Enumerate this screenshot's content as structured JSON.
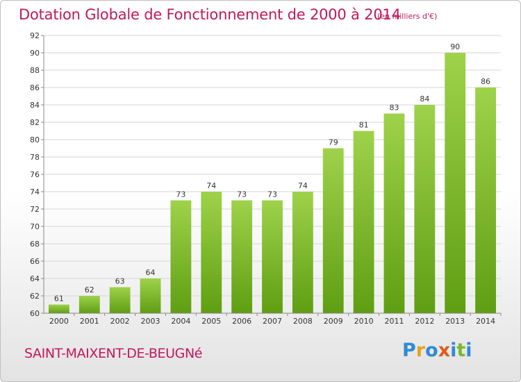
{
  "chart_data": {
    "type": "bar",
    "title": "Dotation Globale de Fonctionnement de 2000 à 2014",
    "subtitle": "(en milliers d'€)",
    "categories": [
      "2000",
      "2001",
      "2002",
      "2003",
      "2004",
      "2005",
      "2006",
      "2007",
      "2008",
      "2009",
      "2010",
      "2011",
      "2012",
      "2013",
      "2014"
    ],
    "values": [
      61,
      62,
      63,
      64,
      73,
      74,
      73,
      73,
      74,
      79,
      81,
      83,
      84,
      90,
      86
    ],
    "ylim": [
      60,
      92
    ],
    "yticks": [
      60,
      62,
      64,
      66,
      68,
      70,
      72,
      74,
      76,
      78,
      80,
      82,
      84,
      86,
      88,
      90,
      92
    ],
    "grid": true,
    "bar_color": "#7ab829"
  },
  "commune": "SAINT-MAIXENT-DE-BEUGNé",
  "logo": {
    "letters": [
      "P",
      "r",
      "o",
      "x",
      "i",
      "t",
      "i"
    ],
    "colors": [
      "#2e8bd6",
      "#e8a21c",
      "#2e8bd6",
      "#e05a1c",
      "#2e8bd6",
      "#7ab829",
      "#2e8bd6"
    ]
  }
}
